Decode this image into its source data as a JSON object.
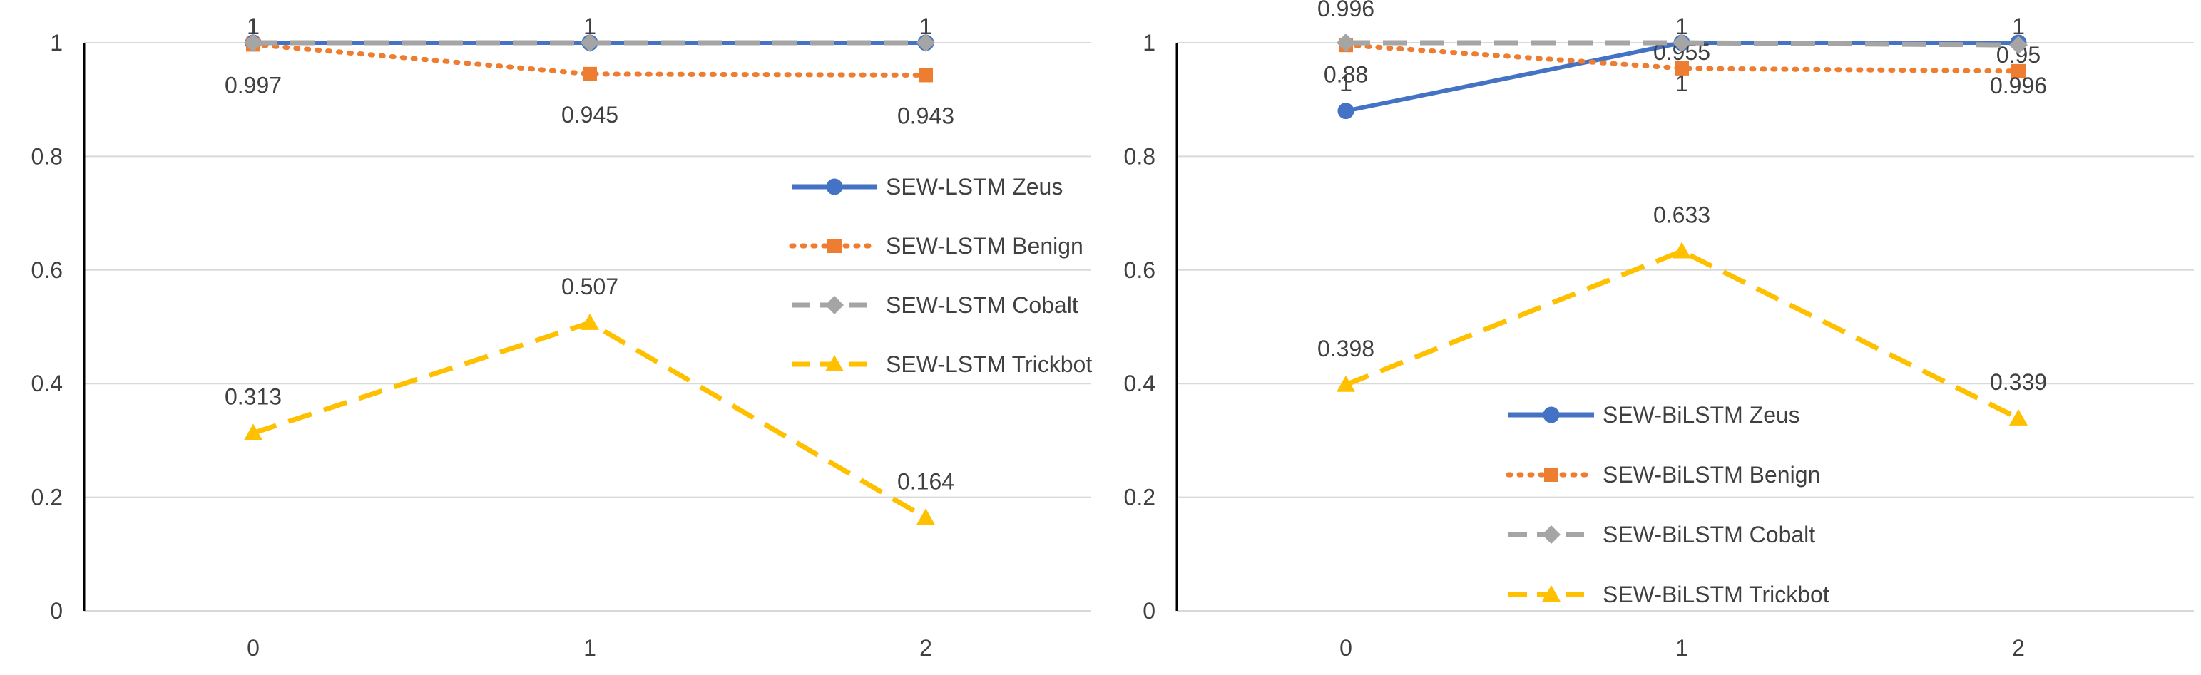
{
  "chart_data": [
    {
      "type": "line",
      "categories": [
        "0",
        "1",
        "2"
      ],
      "ylim": [
        0,
        1
      ],
      "yticks": [
        "0",
        "0.2",
        "0.4",
        "0.6",
        "0.8",
        "1"
      ],
      "grid": true,
      "legend_position": "right",
      "series": [
        {
          "name": "SEW-LSTM Zeus",
          "values": [
            1,
            1,
            1
          ],
          "labels": [
            "1",
            "1",
            "1"
          ],
          "color": "#4472C4",
          "style": "solid",
          "marker": "circle"
        },
        {
          "name": "SEW-LSTM Benign",
          "values": [
            0.997,
            0.945,
            0.943
          ],
          "labels": [
            "0.997",
            "0.945",
            "0.943"
          ],
          "color": "#ED7D31",
          "style": "dotted",
          "marker": "square"
        },
        {
          "name": "SEW-LSTM Cobalt",
          "values": [
            1,
            1,
            1
          ],
          "labels": [
            "1",
            "1",
            "1"
          ],
          "color": "#A5A5A5",
          "style": "dashed",
          "marker": "diamond"
        },
        {
          "name": "SEW-LSTM Trickbot",
          "values": [
            0.313,
            0.507,
            0.164
          ],
          "labels": [
            "0.313",
            "0.507",
            "0.164"
          ],
          "color": "#FFC000",
          "style": "dashed",
          "marker": "triangle"
        }
      ]
    },
    {
      "type": "line",
      "categories": [
        "0",
        "1",
        "2"
      ],
      "ylim": [
        0,
        1
      ],
      "yticks": [
        "0",
        "0.2",
        "0.4",
        "0.6",
        "0.8",
        "1"
      ],
      "grid": true,
      "legend_position": "bottom-center",
      "series": [
        {
          "name": "SEW-BiLSTM Zeus",
          "values": [
            0.88,
            1,
            1
          ],
          "labels": [
            "0.88",
            "1",
            "1"
          ],
          "color": "#4472C4",
          "style": "solid",
          "marker": "circle"
        },
        {
          "name": "SEW-BiLSTM Benign",
          "values": [
            0.996,
            0.955,
            0.95
          ],
          "labels": [
            "0.996",
            "0.955",
            "0.95"
          ],
          "color": "#ED7D31",
          "style": "dotted",
          "marker": "square"
        },
        {
          "name": "SEW-BiLSTM Cobalt",
          "values": [
            1,
            1,
            0.996
          ],
          "labels": [
            "1",
            "1",
            "0.996"
          ],
          "color": "#A5A5A5",
          "style": "dashed",
          "marker": "diamond"
        },
        {
          "name": "SEW-BiLSTM Trickbot",
          "values": [
            0.398,
            0.633,
            0.339
          ],
          "labels": [
            "0.398",
            "0.633",
            "0.339"
          ],
          "color": "#FFC000",
          "style": "dashed",
          "marker": "triangle"
        }
      ]
    }
  ]
}
